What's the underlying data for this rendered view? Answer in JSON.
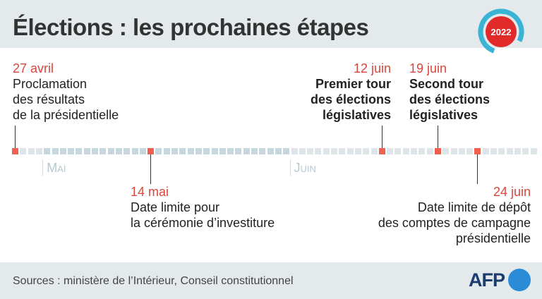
{
  "title": "Élections : les prochaines étapes",
  "badge": {
    "year": "2022",
    "colors": {
      "ring": "#3ab4d4",
      "center": "#e12b2b"
    }
  },
  "timeline": {
    "start": "27 avril",
    "days": 66,
    "months": [
      {
        "label": "Mai",
        "start_day": 4
      },
      {
        "label": "Juin",
        "start_day": 35
      }
    ],
    "colors": {
      "event": "#ee6150",
      "april": "#dde5e8",
      "may": "#c7d7df",
      "june": "#dde5e8"
    }
  },
  "events": [
    {
      "date": "27 avril",
      "day": 0,
      "desc": [
        "Proclamation",
        "des résultats",
        "de la présidentielle"
      ],
      "bold": false
    },
    {
      "date": "14 mai",
      "day": 17,
      "desc": [
        "Date limite pour",
        "la cérémonie d’investiture"
      ],
      "bold": false
    },
    {
      "date": "12 juin",
      "day": 46,
      "desc": [
        "Premier tour",
        "des élections",
        "législatives"
      ],
      "bold": true
    },
    {
      "date": "19 juin",
      "day": 53,
      "desc": [
        "Second tour",
        "des élections",
        "législatives"
      ],
      "bold": true
    },
    {
      "date": "24 juin",
      "day": 58,
      "desc": [
        "Date limite de dépôt",
        "des comptes de campagne",
        "présidentielle"
      ],
      "bold": false
    }
  ],
  "footer": {
    "sources": "Sources : ministère de l’Intérieur, Conseil constitutionnel",
    "logo": "AFP"
  }
}
